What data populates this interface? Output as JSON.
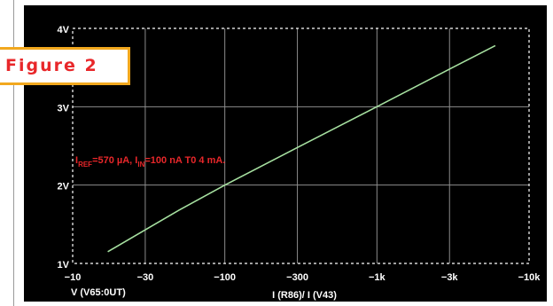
{
  "figure": {
    "label": "Figure 2"
  },
  "colors": {
    "background": "#000000",
    "grid": "#8c8c8c",
    "axis_text": "#ffffff",
    "trace": "#a6e0a0",
    "annotation": "#e8272a",
    "tab_border": "#f2a81e"
  },
  "chart_data": {
    "type": "line",
    "title": "",
    "xlabel": "I (R86)/ I (V43)",
    "ylabel": "V (V65:0UT)",
    "xscale": "log",
    "x_ticks": [
      "−10",
      "−30",
      "−100",
      "−300",
      "−1k",
      "−3k",
      "−10k"
    ],
    "y_ticks": [
      "1V",
      "2V",
      "3V",
      "4V"
    ],
    "xlim": [
      -10,
      -10000
    ],
    "ylim": [
      1,
      4
    ],
    "grid": true,
    "annotation": {
      "parts": [
        {
          "text": "I",
          "sub": false
        },
        {
          "text": "REF",
          "sub": true
        },
        {
          "text": "=570 µA, I",
          "sub": false
        },
        {
          "text": "IN",
          "sub": true
        },
        {
          "text": "=100 nA T0 4 mA.",
          "sub": false
        }
      ]
    },
    "series": [
      {
        "x": [
          -17,
          -50,
          -100,
          -300,
          -1000,
          -3000,
          -6000
        ],
        "y": [
          1.15,
          1.68,
          2.0,
          2.48,
          3.0,
          3.48,
          3.78
        ]
      }
    ]
  }
}
